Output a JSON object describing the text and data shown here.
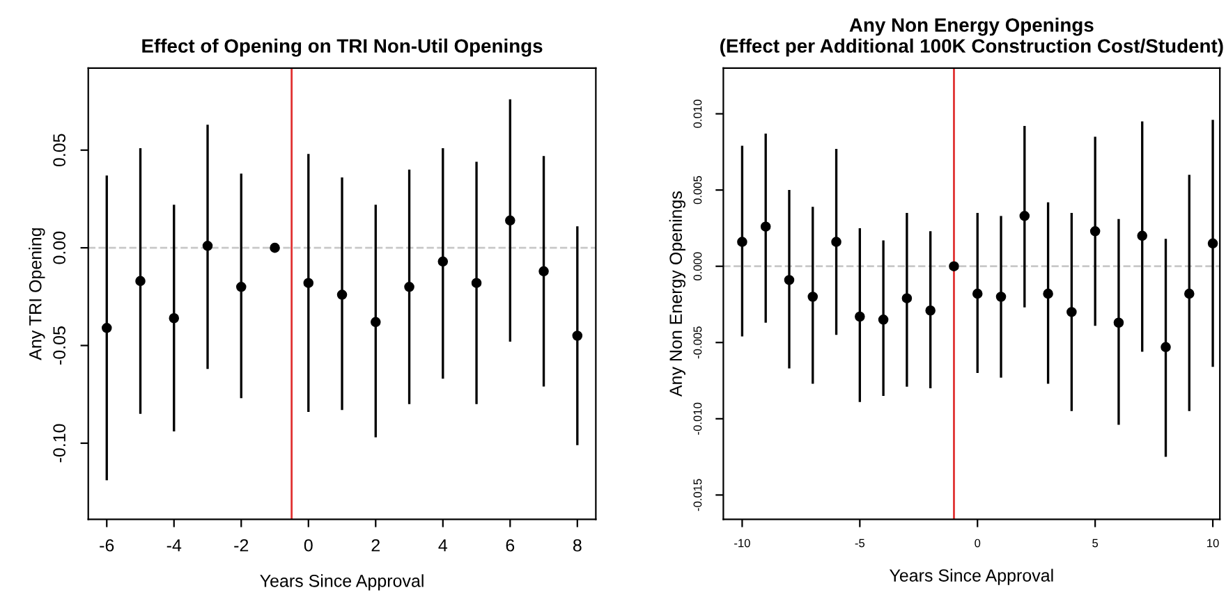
{
  "chart_data": [
    {
      "type": "scatter",
      "title": "Effect of Opening on TRI Non-Util Openings",
      "xlabel": "Years Since Approval",
      "ylabel": "Any TRI Opening",
      "marker": "circle",
      "grid": false,
      "legend": false,
      "x": [
        -6,
        -5,
        -4,
        -3,
        -2,
        -1,
        0,
        1,
        2,
        3,
        4,
        5,
        6,
        7,
        8
      ],
      "values": [
        -0.041,
        -0.017,
        -0.036,
        0.001,
        -0.02,
        0.0,
        -0.018,
        -0.024,
        -0.038,
        -0.02,
        -0.007,
        -0.018,
        0.014,
        -0.012,
        -0.045
      ],
      "errors": [
        [
          -0.119,
          0.037
        ],
        [
          -0.085,
          0.051
        ],
        [
          -0.094,
          0.022
        ],
        [
          -0.062,
          0.063
        ],
        [
          -0.077,
          0.038
        ],
        null,
        [
          -0.084,
          0.048
        ],
        [
          -0.083,
          0.036
        ],
        [
          -0.097,
          0.022
        ],
        [
          -0.08,
          0.04
        ],
        [
          -0.067,
          0.051
        ],
        [
          -0.08,
          0.044
        ],
        [
          -0.048,
          0.076
        ],
        [
          -0.071,
          0.047
        ],
        [
          -0.101,
          0.011
        ]
      ],
      "color": "#000000",
      "xlim": [
        -6.55,
        8.55
      ],
      "ylim": [
        -0.139,
        0.092
      ],
      "xticks": [
        -6,
        -4,
        -2,
        0,
        2,
        4,
        6,
        8
      ],
      "yticks": [
        {
          "value": -0.1,
          "label": "-0.10"
        },
        {
          "value": -0.05,
          "label": "-0.05"
        },
        {
          "value": 0,
          "label": "0.00"
        },
        {
          "value": 0.05,
          "label": "0.05"
        }
      ],
      "ref_lines": [
        {
          "axis": "x",
          "value": -0.5,
          "color": "#e03030",
          "line_style": "solid"
        },
        {
          "axis": "y",
          "value": 0,
          "color": "#c8c8c8",
          "line_style": "dashed"
        }
      ]
    },
    {
      "type": "scatter",
      "title": "Any Non Energy Openings\n(Effect per Additional 100K Construction Cost/Student)",
      "xlabel": "Years Since Approval",
      "ylabel": "Any Non Energy Openings",
      "marker": "circle",
      "grid": false,
      "legend": false,
      "x": [
        -10,
        -9,
        -8,
        -7,
        -6,
        -5,
        -4,
        -3,
        -2,
        -1,
        0,
        1,
        2,
        3,
        4,
        5,
        6,
        7,
        8,
        9,
        10
      ],
      "values": [
        0.0016,
        0.0026,
        -0.0009,
        -0.002,
        0.0016,
        -0.0033,
        -0.0035,
        -0.0021,
        -0.0029,
        0.0,
        -0.0018,
        -0.002,
        0.0033,
        -0.0018,
        -0.003,
        0.0023,
        -0.0037,
        0.002,
        -0.0053,
        -0.0018,
        0.0015
      ],
      "errors": [
        [
          -0.0046,
          0.0079
        ],
        [
          -0.0037,
          0.0087
        ],
        [
          -0.0067,
          0.005
        ],
        [
          -0.0077,
          0.0039
        ],
        [
          -0.0045,
          0.0077
        ],
        [
          -0.0089,
          0.0025
        ],
        [
          -0.0085,
          0.0017
        ],
        [
          -0.0079,
          0.0035
        ],
        [
          -0.008,
          0.0023
        ],
        null,
        [
          -0.007,
          0.0035
        ],
        [
          -0.0073,
          0.0033
        ],
        [
          -0.0027,
          0.0092
        ],
        [
          -0.0077,
          0.0042
        ],
        [
          -0.0095,
          0.0035
        ],
        [
          -0.0039,
          0.0085
        ],
        [
          -0.0104,
          0.0031
        ],
        [
          -0.0056,
          0.0095
        ],
        [
          -0.0125,
          0.0018
        ],
        [
          -0.0095,
          0.006
        ],
        [
          -0.0066,
          0.0096
        ]
      ],
      "color": "#000000",
      "xlim": [
        -10.8,
        10.3
      ],
      "ylim": [
        -0.0166,
        0.013
      ],
      "xticks": [
        -10,
        -5,
        0,
        5,
        10
      ],
      "yticks": [
        {
          "value": -0.015,
          "label": "-0.015"
        },
        {
          "value": -0.01,
          "label": "-0.010"
        },
        {
          "value": -0.005,
          "label": "-0.005"
        },
        {
          "value": 0,
          "label": "0.000"
        },
        {
          "value": 0.005,
          "label": "0.005"
        },
        {
          "value": 0.01,
          "label": "0.010"
        }
      ],
      "ref_lines": [
        {
          "axis": "x",
          "value": -1,
          "color": "#e03030",
          "line_style": "solid"
        },
        {
          "axis": "y",
          "value": 0,
          "color": "#c8c8c8",
          "line_style": "dashed"
        }
      ]
    }
  ]
}
